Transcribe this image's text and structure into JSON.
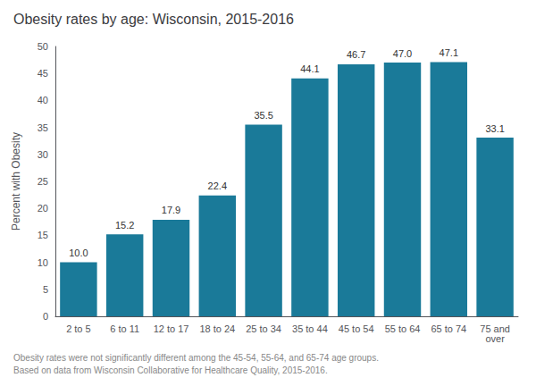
{
  "chart_data": {
    "type": "bar",
    "title": "Obesity rates by age: Wisconsin, 2015-2016",
    "categories": [
      "2 to 5",
      "6 to 11",
      "12 to 17",
      "18 to 24",
      "25 to 34",
      "35 to 44",
      "45 to 54",
      "55 to 64",
      "65 to 74",
      "75 and\nover"
    ],
    "values": [
      10.0,
      15.2,
      17.9,
      22.4,
      35.5,
      44.1,
      46.7,
      47.0,
      47.1,
      33.1
    ],
    "value_labels": [
      "10.0",
      "15.2",
      "17.9",
      "22.4",
      "35.5",
      "44.1",
      "46.7",
      "47.0",
      "47.1",
      "33.1"
    ],
    "color": "#1a7a99",
    "ylabel": "Percent with Obesity",
    "ylim": [
      0,
      50
    ],
    "yticks": [
      0,
      5,
      10,
      15,
      20,
      25,
      30,
      35,
      40,
      45,
      50
    ],
    "grid": false,
    "data_labels": true,
    "annotations": [
      "Obesity rates were not significantly different among the 45-54, 55-64, and 65-74 age groups.",
      "Based on data from Wisconsin Collaborative for Healthcare Quality, 2015-2016."
    ]
  }
}
